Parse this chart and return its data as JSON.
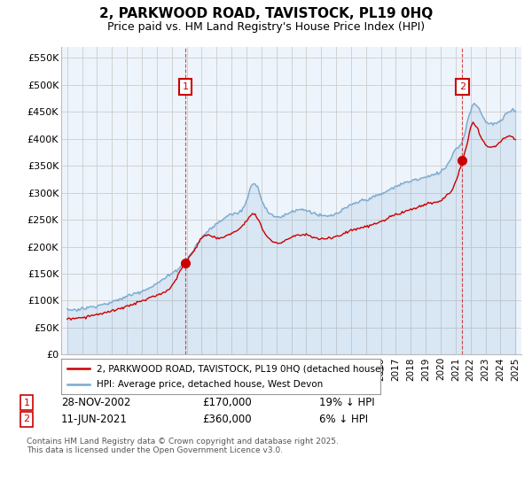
{
  "title": "2, PARKWOOD ROAD, TAVISTOCK, PL19 0HQ",
  "subtitle": "Price paid vs. HM Land Registry's House Price Index (HPI)",
  "ylabel_ticks": [
    "£0",
    "£50K",
    "£100K",
    "£150K",
    "£200K",
    "£250K",
    "£300K",
    "£350K",
    "£400K",
    "£450K",
    "£500K",
    "£550K"
  ],
  "ytick_values": [
    0,
    50000,
    100000,
    150000,
    200000,
    250000,
    300000,
    350000,
    400000,
    450000,
    500000,
    550000
  ],
  "ylim": [
    0,
    570000
  ],
  "sale1_date": "28-NOV-2002",
  "sale1_price": 170000,
  "sale1_hpi_diff": "19% ↓ HPI",
  "sale1_x": 2002.91,
  "sale2_date": "11-JUN-2021",
  "sale2_price": 360000,
  "sale2_hpi_diff": "6% ↓ HPI",
  "sale2_x": 2021.44,
  "legend_red_label": "2, PARKWOOD ROAD, TAVISTOCK, PL19 0HQ (detached house)",
  "legend_blue_label": "HPI: Average price, detached house, West Devon",
  "footer": "Contains HM Land Registry data © Crown copyright and database right 2025.\nThis data is licensed under the Open Government Licence v3.0.",
  "red_color": "#cc0000",
  "blue_color": "#7aaad0",
  "blue_fill_color": "#ddeeff",
  "grid_color": "#cccccc",
  "bg_color": "#ffffff",
  "plot_bg_color": "#eef4fb"
}
